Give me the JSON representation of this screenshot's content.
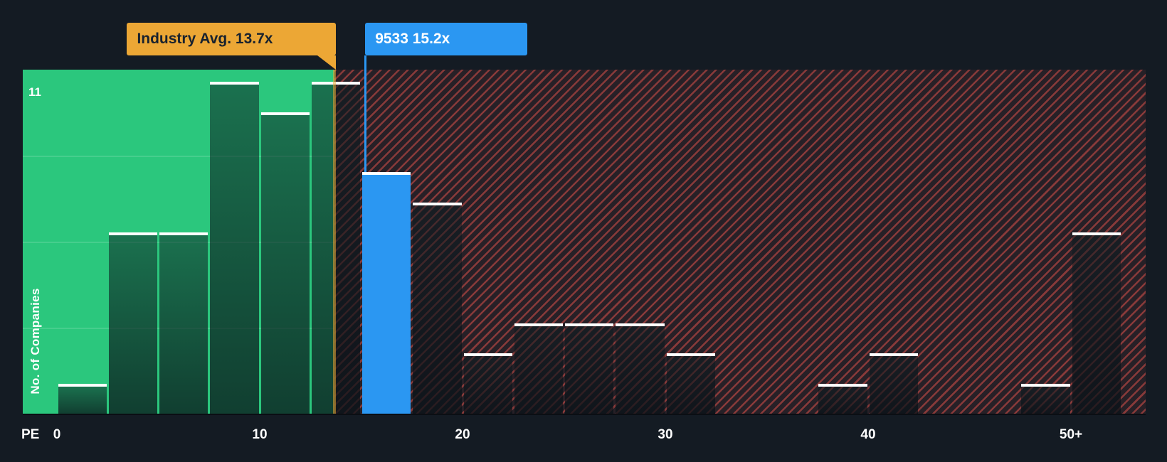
{
  "colors": {
    "background": "#141B23",
    "undervalued_green": "#2BC77D",
    "overvalued_red": "#E7544C",
    "company_blue": "#2B97F2",
    "industry_amber": "#ECA735",
    "bar_cap_white": "#FFFFFF"
  },
  "chart_data": {
    "type": "bar",
    "title": "PE ratio distribution vs industry",
    "ylabel": "No. of Companies",
    "x_axis_label": "PE",
    "y_max_label": "11",
    "ylim": [
      0,
      11.4
    ],
    "bin_width": 2.5,
    "grid": "faint horizontal lines in green zone",
    "x_ticks": [
      {
        "label": "0",
        "value": 0
      },
      {
        "label": "10",
        "value": 10
      },
      {
        "label": "20",
        "value": 20
      },
      {
        "label": "30",
        "value": 30
      },
      {
        "label": "40",
        "value": 40
      },
      {
        "label": "50+",
        "value": 50
      }
    ],
    "bars": [
      {
        "x0": 0,
        "value": 1,
        "zone": "green"
      },
      {
        "x0": 2.5,
        "value": 6,
        "zone": "green"
      },
      {
        "x0": 5,
        "value": 6,
        "zone": "green"
      },
      {
        "x0": 7.5,
        "value": 11,
        "zone": "green"
      },
      {
        "x0": 10,
        "value": 10,
        "zone": "green"
      },
      {
        "x0": 12.5,
        "value": 11,
        "zone": "green"
      },
      {
        "x0": 15,
        "value": 8,
        "zone": "highlight"
      },
      {
        "x0": 17.5,
        "value": 7,
        "zone": "dark"
      },
      {
        "x0": 20,
        "value": 2,
        "zone": "dark"
      },
      {
        "x0": 22.5,
        "value": 3,
        "zone": "dark"
      },
      {
        "x0": 25,
        "value": 3,
        "zone": "dark"
      },
      {
        "x0": 27.5,
        "value": 3,
        "zone": "dark"
      },
      {
        "x0": 30,
        "value": 2,
        "zone": "dark"
      },
      {
        "x0": 37.5,
        "value": 1,
        "zone": "dark"
      },
      {
        "x0": 40,
        "value": 2,
        "zone": "dark"
      },
      {
        "x0": 47.5,
        "value": 1,
        "zone": "dark"
      },
      {
        "x0": 50,
        "value": 6,
        "zone": "dark"
      }
    ],
    "industry_avg": {
      "label": "Industry Avg. 13.7x",
      "value": 13.7
    },
    "company": {
      "label": "9533 15.2x",
      "value": 15.2
    }
  }
}
